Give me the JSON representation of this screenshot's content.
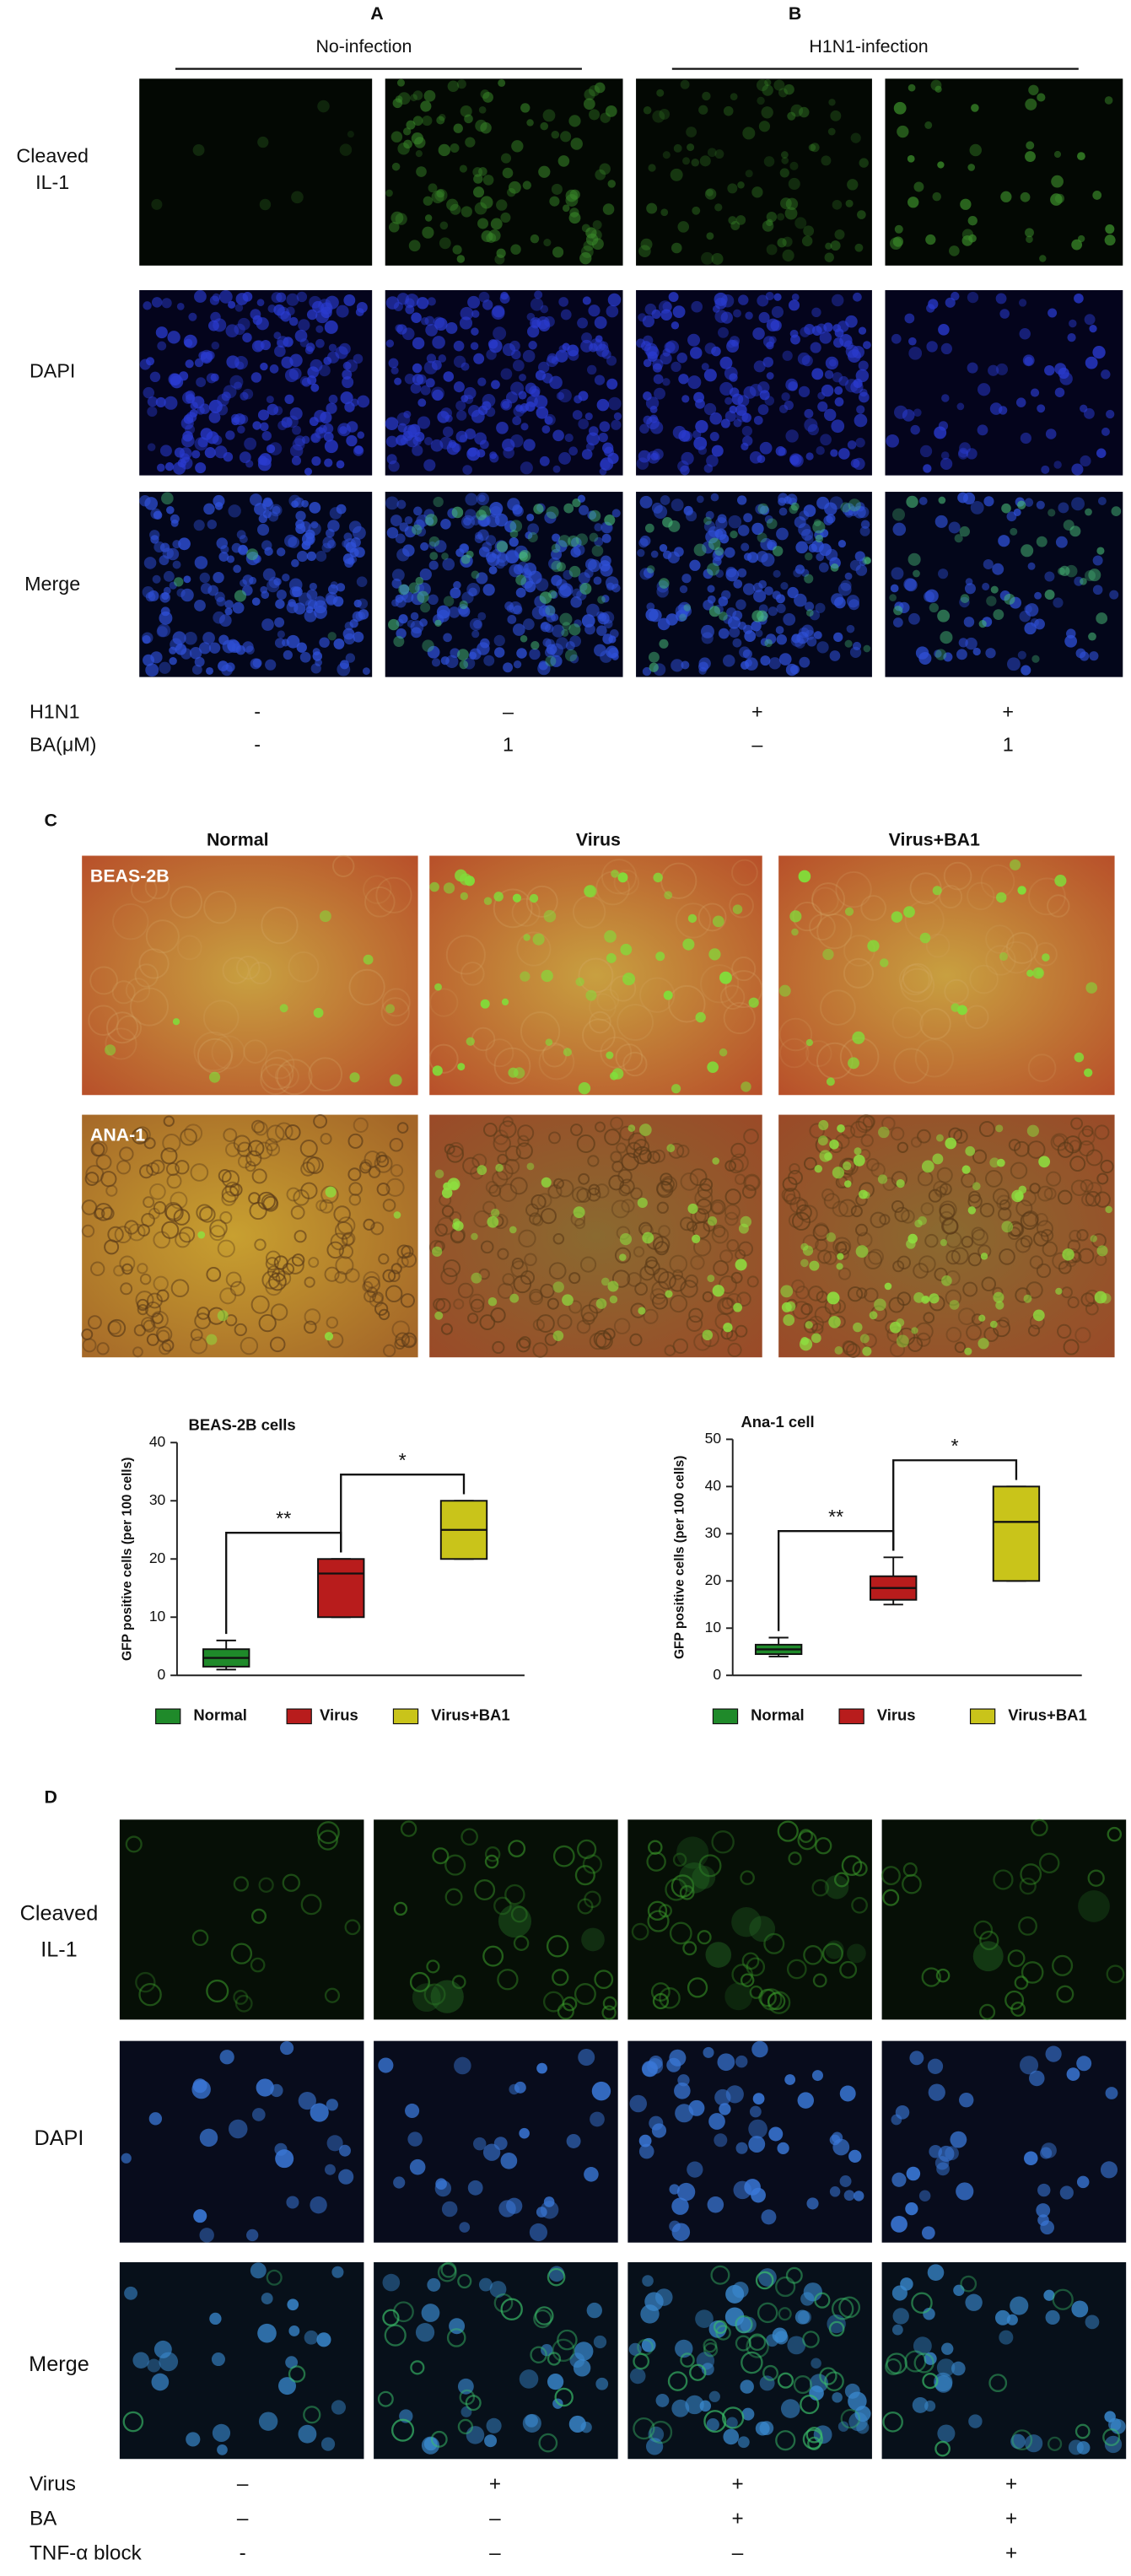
{
  "panel_ab": {
    "label_a": "A",
    "label_b": "B",
    "group_a": "No-infection",
    "group_b": "H1N1-infection",
    "row_labels": [
      [
        "Cleaved",
        "IL-1"
      ],
      [
        "DAPI"
      ],
      [
        "Merge"
      ]
    ],
    "conditions": [
      {
        "name": "H1N1",
        "values": [
          "-",
          "–",
          "+",
          "+"
        ]
      },
      {
        "name": "BA(μM)",
        "values": [
          "-",
          1,
          "–",
          1
        ]
      }
    ]
  },
  "panel_c": {
    "label": "C",
    "columns": [
      "Normal",
      "Virus",
      "Virus+BA1"
    ],
    "rows": [
      "BEAS-2B",
      "ANA-1"
    ]
  },
  "chart_data": [
    {
      "type": "box",
      "title": "BEAS-2B cells",
      "y_label": "GFP positive cells (per 100 cells)",
      "ylim": [
        0,
        40
      ],
      "yticks": [
        0,
        10,
        20,
        30,
        40
      ],
      "boxes": [
        {
          "name": "Normal",
          "color": "#1f8a2a",
          "whisker_low": 1,
          "q1": 1.5,
          "median": 3,
          "q3": 4.5,
          "whisker_high": 6
        },
        {
          "name": "Virus",
          "color": "#b81c1c",
          "whisker_low": 10,
          "q1": 10,
          "median": 17.5,
          "q3": 20,
          "whisker_high": 20
        },
        {
          "name": "Virus+BA1",
          "color": "#c9c41a",
          "whisker_low": 20,
          "q1": 20,
          "median": 25,
          "q3": 30,
          "whisker_high": 30
        }
      ],
      "annotations": [
        "**",
        "*"
      ]
    },
    {
      "type": "box",
      "title": "Ana-1 cell",
      "y_label": "GFP positive cells (per 100 cells)",
      "ylim": [
        0,
        50
      ],
      "yticks": [
        0,
        10,
        20,
        30,
        40,
        50
      ],
      "boxes": [
        {
          "name": "Normal",
          "color": "#1f8a2a",
          "whisker_low": 4,
          "q1": 4.5,
          "median": 5.5,
          "q3": 6.5,
          "whisker_high": 8
        },
        {
          "name": "Virus",
          "color": "#b81c1c",
          "whisker_low": 15,
          "q1": 16,
          "median": 18.5,
          "q3": 21,
          "whisker_high": 25
        },
        {
          "name": "Virus+BA1",
          "color": "#c9c41a",
          "whisker_low": 20,
          "q1": 20,
          "median": 32.5,
          "q3": 40,
          "whisker_high": 40
        }
      ],
      "annotations": [
        "**",
        "*"
      ]
    }
  ],
  "panel_d": {
    "label": "D",
    "row_labels": [
      [
        "Cleaved",
        "IL-1"
      ],
      [
        "DAPI"
      ],
      [
        "Merge"
      ]
    ],
    "conditions": [
      {
        "name": "Virus",
        "values": [
          "–",
          "+",
          "+",
          "+"
        ]
      },
      {
        "name": "BA",
        "values": [
          "–",
          "–",
          "+",
          "+"
        ]
      },
      {
        "name": "TNF-α block",
        "values": [
          "-",
          "–",
          "–",
          "+"
        ]
      }
    ]
  }
}
